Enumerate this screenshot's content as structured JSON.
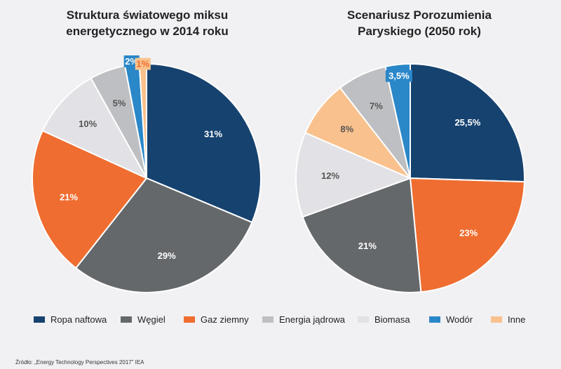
{
  "colors": {
    "Ropa naftowa": "#16426f",
    "Węgiel": "#65686b",
    "Gaz ziemny": "#ef6d30",
    "Energia jądrowa": "#bebfc2",
    "Biomasa": "#e2e2e6",
    "Wodór": "#2a87c8",
    "Inne": "#f9c18d"
  },
  "legend": [
    "Ropa naftowa",
    "Węgiel",
    "Gaz ziemny",
    "Energia jądrowa",
    "Biomasa",
    "Wodór",
    "Inne"
  ],
  "source": "Źródło: „Energy Technology Perspectives 2017” IEA",
  "chart_data": [
    {
      "type": "pie",
      "title_lines": [
        "Struktura światowego miksu",
        "energetycznego w 2014 roku"
      ],
      "slices": [
        {
          "name": "Ropa naftowa",
          "value": 31,
          "label": "31%"
        },
        {
          "name": "Węgiel",
          "value": 29,
          "label": "29%"
        },
        {
          "name": "Gaz ziemny",
          "value": 21,
          "label": "21%"
        },
        {
          "name": "Biomasa",
          "value": 10,
          "label": "10%"
        },
        {
          "name": "Energia jądrowa",
          "value": 5,
          "label": "5%"
        },
        {
          "name": "Wodór",
          "value": 2,
          "label": "2%"
        },
        {
          "name": "Inne",
          "value": 1,
          "label": "1%"
        }
      ]
    },
    {
      "type": "pie",
      "title_lines": [
        "Scenariusz Porozumienia",
        "Paryskiego (2050 rok)"
      ],
      "slices": [
        {
          "name": "Ropa naftowa",
          "value": 25.5,
          "label": "25,5%"
        },
        {
          "name": "Gaz ziemny",
          "value": 23,
          "label": "23%"
        },
        {
          "name": "Węgiel",
          "value": 21,
          "label": "21%"
        },
        {
          "name": "Biomasa",
          "value": 12,
          "label": "12%"
        },
        {
          "name": "Inne",
          "value": 8,
          "label": "8%"
        },
        {
          "name": "Energia jądrowa",
          "value": 7,
          "label": "7%"
        },
        {
          "name": "Wodór",
          "value": 3.5,
          "label": "3,5%"
        }
      ]
    }
  ]
}
